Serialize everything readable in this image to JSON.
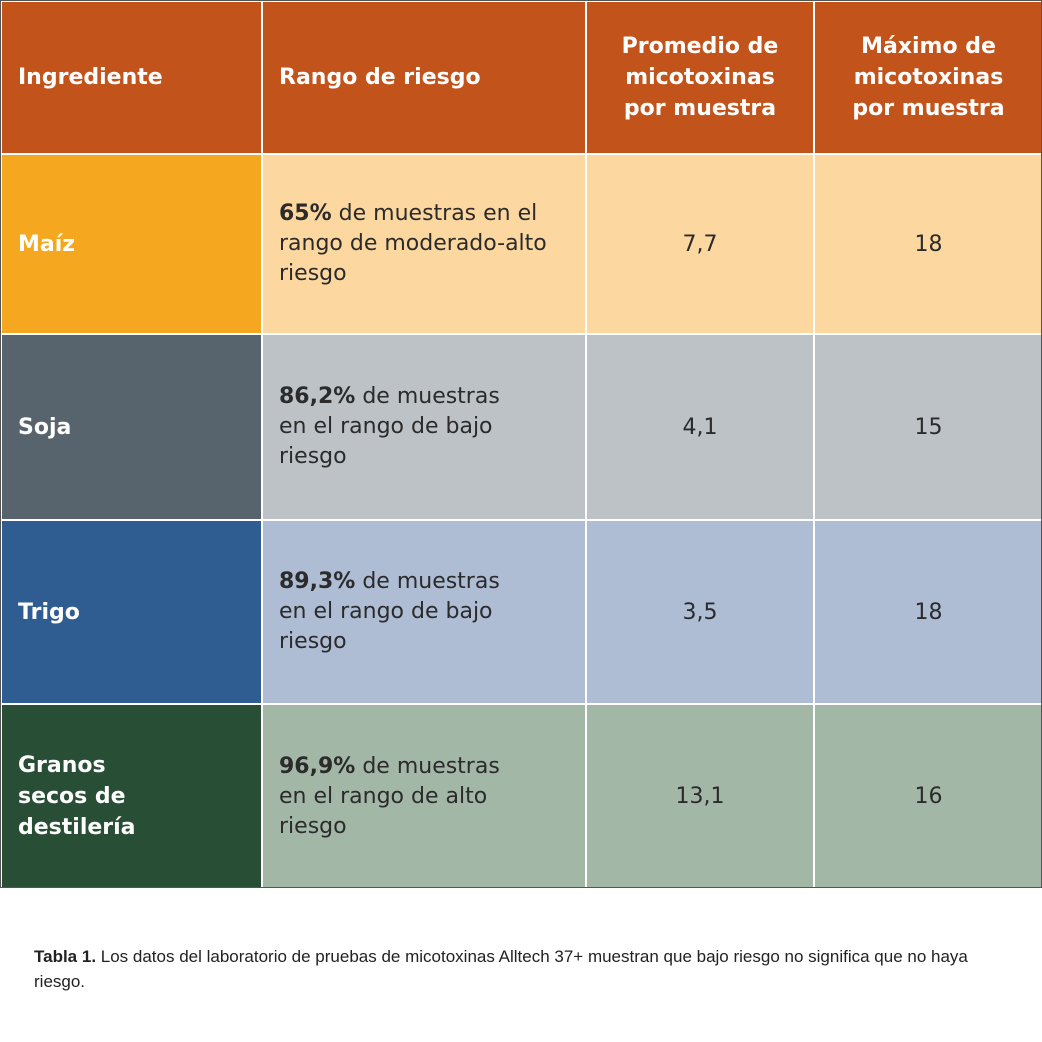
{
  "table": {
    "headers": [
      "Ingrediente",
      "Rango de riesgo",
      "Promedio de micotoxinas por muestra",
      "Máximo de micotoxinas por muestra"
    ],
    "rows": [
      {
        "ingredient": "Maíz",
        "risk_bold": "65%",
        "risk_text": " de muestras en el rango de moderado-alto riesgo",
        "average": "7,7",
        "max": "18",
        "ingredient_color": "#f5a81f",
        "row_color": "#fdd7a0"
      },
      {
        "ingredient": "Soja",
        "risk_bold": "86,2%",
        "risk_text": " de muestras en el rango de bajo riesgo",
        "average": "4,1",
        "max": "15",
        "ingredient_color": "#58646d",
        "row_color": "#bcc2c6"
      },
      {
        "ingredient": "Trigo",
        "risk_bold": "89,3%",
        "risk_text": " de muestras en el rango de bajo riesgo",
        "average": "3,5",
        "max": "18",
        "ingredient_color": "#2f5d92",
        "row_color": "#aebcd4"
      },
      {
        "ingredient": "Granos secos de destilería",
        "risk_bold": "96,9%",
        "risk_text": " de muestras en el rango de alto riesgo",
        "average": "13,1",
        "max": "16",
        "ingredient_color": "#284f35",
        "row_color": "#a3b7a7"
      }
    ],
    "header_color": "#c2531b"
  },
  "caption": {
    "label": "Tabla 1.",
    "text": " Los datos del laboratorio de pruebas de micotoxinas Alltech 37+ muestran que bajo riesgo no significa que no haya riesgo."
  }
}
